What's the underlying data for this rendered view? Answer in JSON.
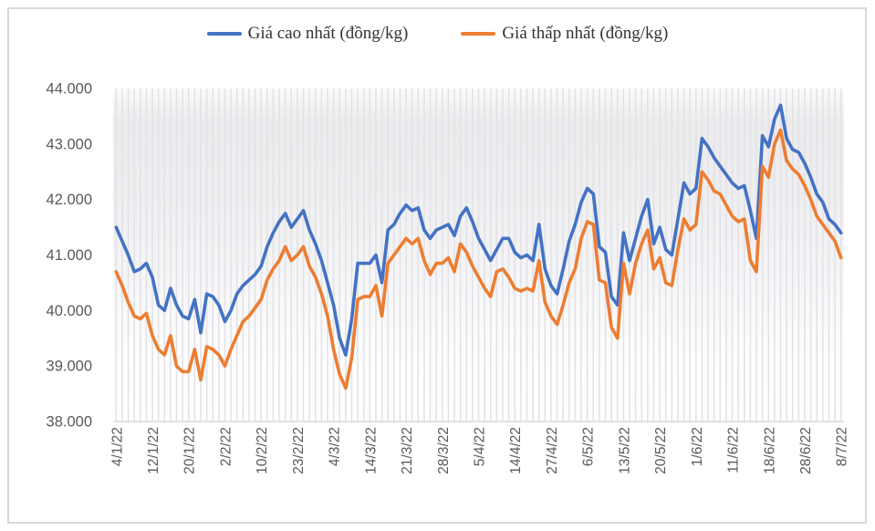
{
  "chart_data": {
    "type": "line",
    "title": "",
    "legend_position": "top",
    "grid": "vertical-stripes",
    "ylim": [
      38000,
      44000
    ],
    "y_tick_step": 1000,
    "y_tick_labels": [
      "38.000",
      "39.000",
      "40.000",
      "41.000",
      "42.000",
      "43.000",
      "44.000"
    ],
    "x_tick_interval": 6,
    "x_tick_labels": [
      "4/1/22",
      "12/1/22",
      "20/1/22",
      "2/2/22",
      "10/2/22",
      "23/2/22",
      "4/3/22",
      "14/3/22",
      "21/3/22",
      "28/3/22",
      "5/4/22",
      "14/4/22",
      "27/4/22",
      "6/5/22",
      "13/5/22",
      "20/5/22",
      "1/6/22",
      "11/6/22",
      "18/6/22",
      "28/6/22",
      "8/7/22"
    ],
    "series": [
      {
        "name": "Giá cao nhất (đồng/kg)",
        "color": "#4472C4",
        "values": [
          41500,
          41250,
          41000,
          40700,
          40750,
          40850,
          40600,
          40100,
          40000,
          40400,
          40100,
          39900,
          39850,
          40200,
          39600,
          40300,
          40250,
          40100,
          39800,
          40000,
          40300,
          40450,
          40550,
          40650,
          40800,
          41150,
          41400,
          41600,
          41750,
          41500,
          41650,
          41800,
          41450,
          41200,
          40900,
          40500,
          40100,
          39500,
          39200,
          39850,
          40850,
          40850,
          40850,
          41000,
          40500,
          41450,
          41550,
          41750,
          41900,
          41800,
          41850,
          41450,
          41300,
          41450,
          41500,
          41550,
          41350,
          41700,
          41850,
          41600,
          41300,
          41100,
          40900,
          41100,
          41300,
          41300,
          41050,
          40950,
          41000,
          40900,
          41550,
          40750,
          40450,
          40300,
          40750,
          41250,
          41550,
          41950,
          42200,
          42100,
          41150,
          41050,
          40250,
          40100,
          41400,
          40900,
          41300,
          41700,
          42000,
          41200,
          41500,
          41100,
          41000,
          41650,
          42300,
          42100,
          42200,
          43100,
          42950,
          42750,
          42600,
          42450,
          42300,
          42200,
          42250,
          41800,
          41300,
          43150,
          42950,
          43450,
          43700,
          43100,
          42900,
          42850,
          42650,
          42400,
          42100,
          41950,
          41650,
          41550,
          41400
        ]
      },
      {
        "name": "Giá thấp nhất (đồng/kg)",
        "color": "#ED7D31",
        "values": [
          40700,
          40450,
          40150,
          39900,
          39850,
          39950,
          39550,
          39300,
          39200,
          39550,
          39000,
          38900,
          38900,
          39300,
          38750,
          39350,
          39300,
          39200,
          39000,
          39300,
          39550,
          39800,
          39900,
          40050,
          40200,
          40550,
          40750,
          40900,
          41150,
          40900,
          41000,
          41150,
          40800,
          40600,
          40300,
          39900,
          39300,
          38850,
          38600,
          39150,
          40200,
          40250,
          40250,
          40450,
          39900,
          40850,
          41000,
          41150,
          41300,
          41200,
          41300,
          40900,
          40650,
          40850,
          40850,
          40950,
          40700,
          41200,
          41050,
          40800,
          40600,
          40400,
          40250,
          40700,
          40750,
          40600,
          40400,
          40350,
          40400,
          40350,
          40900,
          40150,
          39900,
          39750,
          40100,
          40500,
          40750,
          41300,
          41600,
          41550,
          40550,
          40500,
          39700,
          39500,
          40850,
          40300,
          40850,
          41200,
          41450,
          40750,
          40950,
          40500,
          40450,
          41100,
          41650,
          41450,
          41550,
          42500,
          42350,
          42150,
          42100,
          41900,
          41700,
          41600,
          41650,
          40900,
          40700,
          42600,
          42400,
          43000,
          43250,
          42700,
          42550,
          42450,
          42250,
          42000,
          41700,
          41550,
          41400,
          41250,
          40950
        ]
      }
    ],
    "style": {
      "frame_border_color": "#D9D9D9",
      "axis_line_color": "#D9D9D9",
      "gridline_color": "#E3E3E7",
      "tick_label_color": "#595959"
    }
  }
}
